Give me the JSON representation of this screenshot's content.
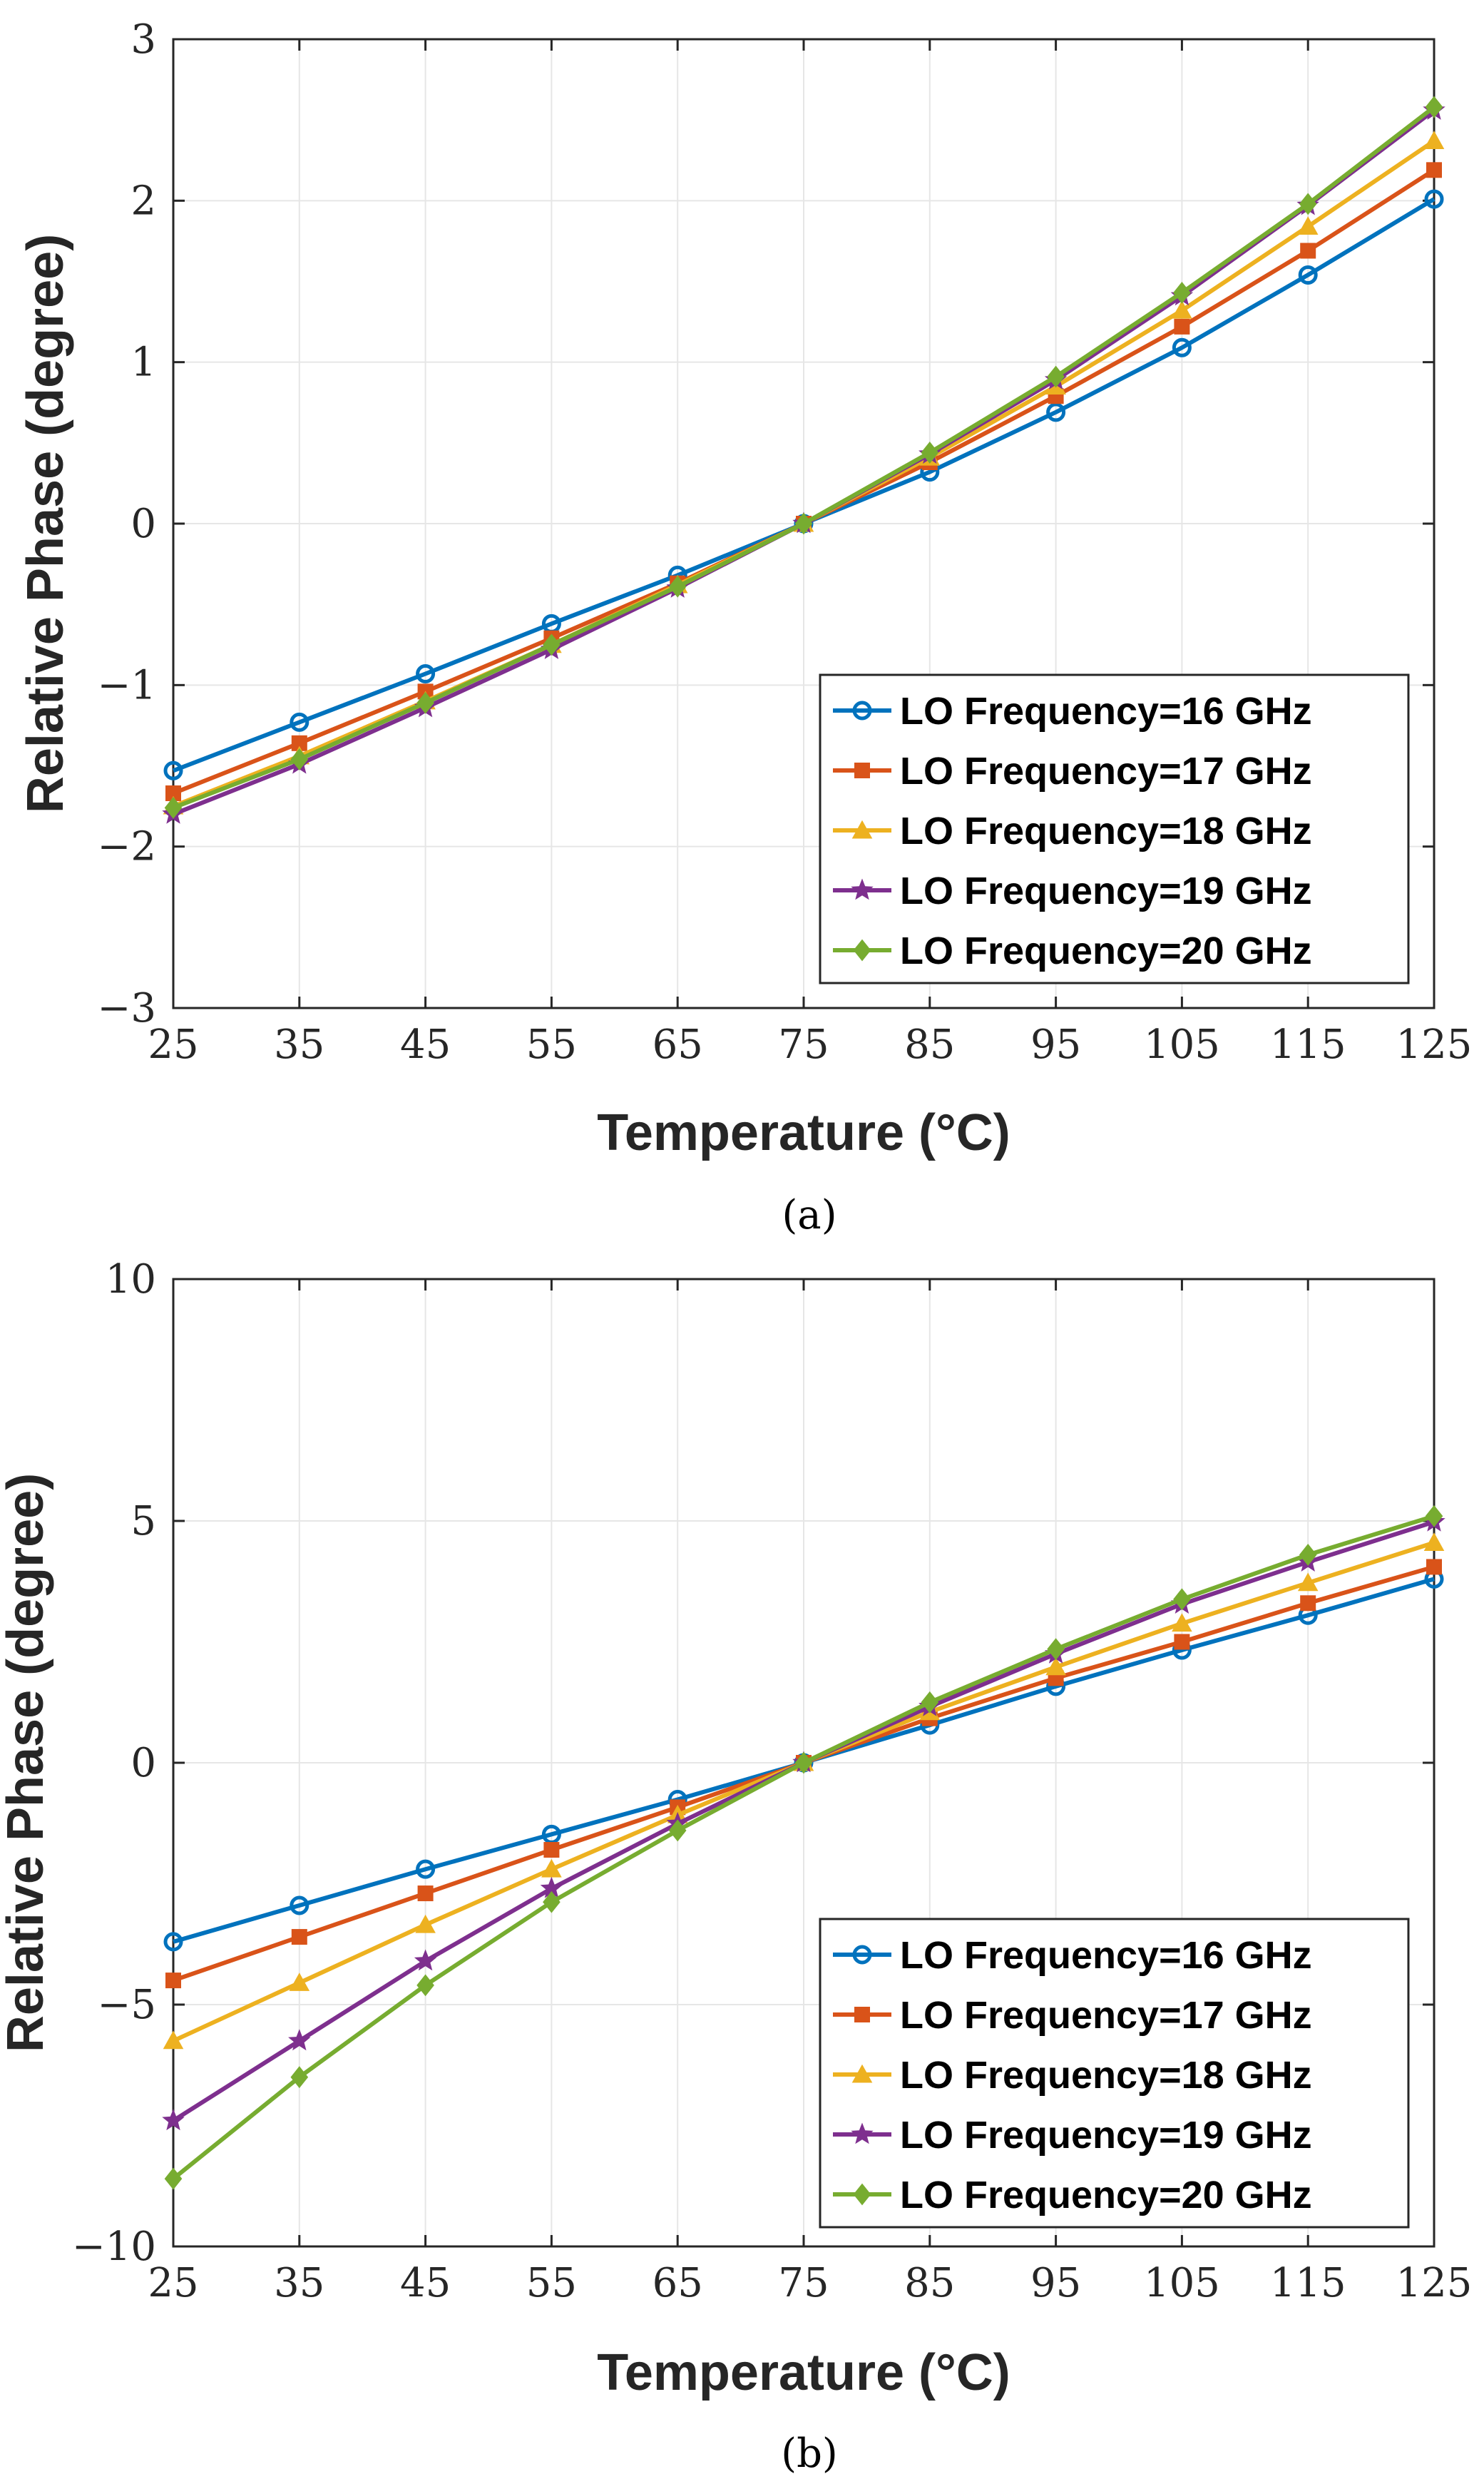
{
  "chart_data": [
    {
      "type": "line",
      "panel": "a",
      "caption": "(a)",
      "xlabel": "Temperature (°C)",
      "ylabel": "Relative Phase (degree)",
      "xlim": [
        25,
        125
      ],
      "ylim": [
        -3,
        3
      ],
      "xticks": [
        25,
        35,
        45,
        55,
        65,
        75,
        85,
        95,
        105,
        115,
        125
      ],
      "yticks": [
        -3,
        -2,
        -1,
        0,
        1,
        2,
        3
      ],
      "ytick_labels": [
        "−3",
        "−2",
        "−1",
        "0",
        "1",
        "2",
        "3"
      ],
      "grid": true,
      "legend_position": "lower-right",
      "x": [
        25,
        35,
        45,
        55,
        65,
        75,
        85,
        95,
        105,
        115,
        125
      ],
      "series": [
        {
          "name": "LO Frequency=16 GHz",
          "color": "#0072BD",
          "marker": "circle",
          "values": [
            -1.53,
            -1.23,
            -0.93,
            -0.62,
            -0.32,
            0,
            0.32,
            0.69,
            1.09,
            1.54,
            2.01
          ]
        },
        {
          "name": "LO Frequency=17 GHz",
          "color": "#D95319",
          "marker": "square",
          "values": [
            -1.67,
            -1.36,
            -1.04,
            -0.71,
            -0.37,
            0,
            0.38,
            0.79,
            1.22,
            1.69,
            2.19
          ]
        },
        {
          "name": "LO Frequency=18 GHz",
          "color": "#EDB120",
          "marker": "triangle",
          "values": [
            -1.75,
            -1.44,
            -1.1,
            -0.75,
            -0.38,
            0,
            0.41,
            0.85,
            1.32,
            1.84,
            2.37
          ]
        },
        {
          "name": "LO Frequency=19 GHz",
          "color": "#7E2F8E",
          "marker": "star",
          "values": [
            -1.8,
            -1.49,
            -1.14,
            -0.78,
            -0.4,
            0,
            0.43,
            0.89,
            1.41,
            1.97,
            2.56
          ]
        },
        {
          "name": "LO Frequency=20 GHz",
          "color": "#77AC30",
          "marker": "diamond",
          "values": [
            -1.76,
            -1.46,
            -1.11,
            -0.75,
            -0.39,
            0,
            0.44,
            0.91,
            1.43,
            1.98,
            2.58
          ]
        }
      ]
    },
    {
      "type": "line",
      "panel": "b",
      "caption": "(b)",
      "xlabel": "Temperature (°C)",
      "ylabel": "Relative Phase (degree)",
      "xlim": [
        25,
        125
      ],
      "ylim": [
        -10,
        10
      ],
      "xticks": [
        25,
        35,
        45,
        55,
        65,
        75,
        85,
        95,
        105,
        115,
        125
      ],
      "yticks": [
        -10,
        -5,
        0,
        5,
        10
      ],
      "ytick_labels": [
        "−10",
        "−5",
        "0",
        "5",
        "10"
      ],
      "grid": true,
      "legend_position": "lower-right",
      "x": [
        25,
        35,
        45,
        55,
        65,
        75,
        85,
        95,
        105,
        115,
        125
      ],
      "series": [
        {
          "name": "LO Frequency=16 GHz",
          "color": "#0072BD",
          "marker": "circle",
          "values": [
            -3.7,
            -2.95,
            -2.2,
            -1.48,
            -0.76,
            0,
            0.78,
            1.58,
            2.33,
            3.05,
            3.8
          ]
        },
        {
          "name": "LO Frequency=17 GHz",
          "color": "#D95319",
          "marker": "square",
          "values": [
            -4.5,
            -3.6,
            -2.7,
            -1.8,
            -0.92,
            0,
            0.92,
            1.75,
            2.5,
            3.3,
            4.05
          ]
        },
        {
          "name": "LO Frequency=18 GHz",
          "color": "#EDB120",
          "marker": "triangle",
          "values": [
            -5.75,
            -4.55,
            -3.35,
            -2.2,
            -1.08,
            0,
            1.05,
            1.98,
            2.88,
            3.72,
            4.55
          ]
        },
        {
          "name": "LO Frequency=19 GHz",
          "color": "#7E2F8E",
          "marker": "star",
          "values": [
            -7.4,
            -5.75,
            -4.1,
            -2.6,
            -1.26,
            0,
            1.16,
            2.25,
            3.28,
            4.15,
            4.98
          ]
        },
        {
          "name": "LO Frequency=20 GHz",
          "color": "#77AC30",
          "marker": "diamond",
          "values": [
            -8.6,
            -6.5,
            -4.6,
            -2.88,
            -1.4,
            0,
            1.25,
            2.35,
            3.38,
            4.3,
            5.1
          ]
        }
      ]
    }
  ]
}
